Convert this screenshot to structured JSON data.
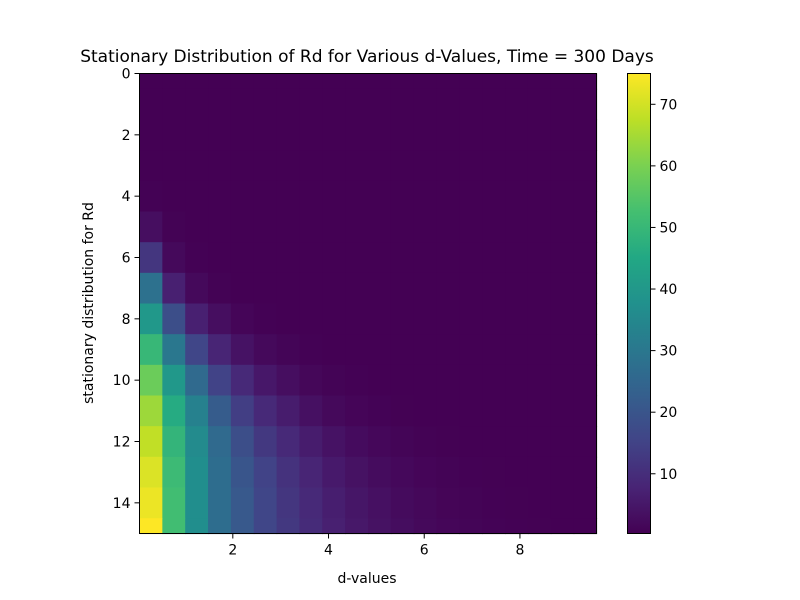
{
  "chart_data": {
    "type": "heatmap",
    "title": "Stationary Distribution of Rd for Various d-Values, Time = 300 Days",
    "xlabel": "d-values",
    "ylabel": "stationary distribution for Rd",
    "x_ticks": [
      "2",
      "4",
      "6",
      "8"
    ],
    "x_tick_values": [
      2,
      4,
      6,
      8
    ],
    "y_ticks": [
      "0",
      "2",
      "4",
      "6",
      "8",
      "10",
      "12",
      "14"
    ],
    "y_tick_values": [
      0,
      2,
      4,
      6,
      8,
      10,
      12,
      14
    ],
    "xlim": [
      0.05,
      9.6
    ],
    "ylim": [
      15,
      0
    ],
    "y_inverted": true,
    "colormap": "viridis",
    "colorbar": {
      "ticks": [
        "10",
        "20",
        "30",
        "40",
        "50",
        "60",
        "70"
      ],
      "tick_values": [
        10,
        20,
        30,
        40,
        50,
        60,
        70
      ],
      "min": 0.3,
      "max": 75
    },
    "d_values": [
      0.05,
      0.55,
      1.05,
      1.55,
      2.05,
      2.55,
      3.05,
      3.55,
      4.05,
      4.55,
      5.05,
      5.55,
      6.05,
      6.55,
      7.05,
      7.55,
      8.05,
      8.55,
      9.05,
      9.55
    ],
    "rd_values": [
      0,
      1,
      2,
      3,
      4,
      5,
      6,
      7,
      8,
      9,
      10,
      11,
      12,
      13,
      14,
      15
    ],
    "values": [
      [
        0.3,
        0.3,
        0.3,
        0.3,
        0.3,
        0.3,
        0.3,
        0.3,
        0.3,
        0.3,
        0.3,
        0.3,
        0.3,
        0.3,
        0.3,
        0.3,
        0.3,
        0.3,
        0.3,
        0.3
      ],
      [
        0.3,
        0.3,
        0.3,
        0.3,
        0.3,
        0.3,
        0.3,
        0.3,
        0.3,
        0.3,
        0.3,
        0.3,
        0.3,
        0.3,
        0.3,
        0.3,
        0.3,
        0.3,
        0.3,
        0.3
      ],
      [
        0.3,
        0.3,
        0.3,
        0.3,
        0.3,
        0.3,
        0.3,
        0.3,
        0.3,
        0.3,
        0.3,
        0.3,
        0.3,
        0.3,
        0.3,
        0.3,
        0.3,
        0.3,
        0.3,
        0.3
      ],
      [
        0.3,
        0.3,
        0.3,
        0.3,
        0.3,
        0.3,
        0.3,
        0.3,
        0.3,
        0.3,
        0.3,
        0.3,
        0.3,
        0.3,
        0.3,
        0.3,
        0.3,
        0.3,
        0.3,
        0.3
      ],
      [
        0.5,
        0.3,
        0.3,
        0.3,
        0.3,
        0.3,
        0.3,
        0.3,
        0.3,
        0.3,
        0.3,
        0.3,
        0.3,
        0.3,
        0.3,
        0.3,
        0.3,
        0.3,
        0.3,
        0.3
      ],
      [
        3,
        0.6,
        0.3,
        0.3,
        0.3,
        0.3,
        0.3,
        0.3,
        0.3,
        0.3,
        0.3,
        0.3,
        0.3,
        0.3,
        0.3,
        0.3,
        0.3,
        0.3,
        0.3,
        0.3
      ],
      [
        12,
        2,
        0.5,
        0.3,
        0.3,
        0.3,
        0.3,
        0.3,
        0.3,
        0.3,
        0.3,
        0.3,
        0.3,
        0.3,
        0.3,
        0.3,
        0.3,
        0.3,
        0.3,
        0.3
      ],
      [
        28,
        7,
        2,
        0.6,
        0.3,
        0.3,
        0.3,
        0.3,
        0.3,
        0.3,
        0.3,
        0.3,
        0.3,
        0.3,
        0.3,
        0.3,
        0.3,
        0.3,
        0.3,
        0.3
      ],
      [
        40,
        18,
        7,
        3,
        1.2,
        0.5,
        0.3,
        0.3,
        0.3,
        0.3,
        0.3,
        0.3,
        0.3,
        0.3,
        0.3,
        0.3,
        0.3,
        0.3,
        0.3,
        0.3
      ],
      [
        50,
        30,
        16,
        8,
        4,
        2,
        1,
        0.5,
        0.3,
        0.3,
        0.3,
        0.3,
        0.3,
        0.3,
        0.3,
        0.3,
        0.3,
        0.3,
        0.3,
        0.3
      ],
      [
        58,
        40,
        26,
        15,
        9,
        5,
        3,
        1.5,
        0.8,
        0.5,
        0.3,
        0.3,
        0.3,
        0.3,
        0.3,
        0.3,
        0.3,
        0.3,
        0.3,
        0.3
      ],
      [
        64,
        46,
        33,
        22,
        14,
        9,
        6,
        3.5,
        2,
        1.2,
        0.7,
        0.4,
        0.3,
        0.3,
        0.3,
        0.3,
        0.3,
        0.3,
        0.3,
        0.3
      ],
      [
        68,
        49,
        36,
        26,
        18,
        12.5,
        9,
        6,
        4,
        2.5,
        1.6,
        1,
        0.6,
        0.4,
        0.3,
        0.3,
        0.3,
        0.3,
        0.3,
        0.3
      ],
      [
        71,
        51,
        37,
        27,
        20,
        15,
        11,
        8,
        5.5,
        3.8,
        2.6,
        1.8,
        1.2,
        0.8,
        0.5,
        0.4,
        0.3,
        0.3,
        0.3,
        0.3
      ],
      [
        73,
        52,
        37,
        27,
        21,
        16,
        12,
        9,
        6.5,
        4.7,
        3.4,
        2.4,
        1.7,
        1.1,
        0.8,
        0.5,
        0.4,
        0.3,
        0.3,
        0.3
      ],
      [
        75,
        52,
        37,
        27,
        21,
        16,
        12.5,
        9.5,
        7,
        5.2,
        3.8,
        2.8,
        2,
        1.4,
        1,
        0.7,
        0.5,
        0.4,
        0.3,
        0.3
      ]
    ]
  }
}
